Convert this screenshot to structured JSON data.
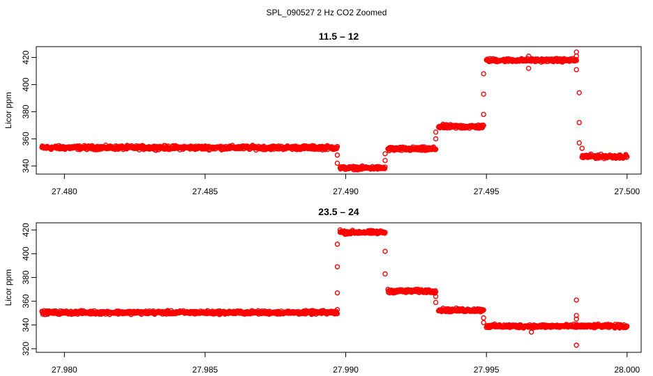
{
  "figure": {
    "suptitle": "SPL_090527  2 Hz CO2 Zoomed",
    "point_color": "#ff0000"
  },
  "chart_data": [
    {
      "type": "scatter",
      "title": "11.5 – 12",
      "ylabel": "Licor ppm",
      "xlabel": "",
      "xlim": [
        27.479,
        27.5005
      ],
      "ylim": [
        334,
        428
      ],
      "xticks": [
        27.48,
        27.485,
        27.49,
        27.495,
        27.5
      ],
      "xtick_labels": [
        "27.480",
        "27.485",
        "27.490",
        "27.495",
        "27.500"
      ],
      "yticks": [
        340,
        360,
        380,
        400,
        420
      ],
      "ytick_labels": [
        "340",
        "360",
        "380",
        "400",
        "420"
      ],
      "segments": [
        {
          "x_start": 27.4792,
          "x_end": 27.4897,
          "level": 353.5,
          "noise": 1.2
        },
        {
          "x_start": 27.4898,
          "x_end": 27.4914,
          "level": 338.5,
          "noise": 1.0
        },
        {
          "x_start": 27.4915,
          "x_end": 27.4932,
          "level": 352.5,
          "noise": 1.2
        },
        {
          "x_start": 27.4933,
          "x_end": 27.4949,
          "level": 369.0,
          "noise": 1.2
        },
        {
          "x_start": 27.495,
          "x_end": 27.4982,
          "level": 418.0,
          "noise": 1.0
        },
        {
          "x_start": 27.4984,
          "x_end": 27.5,
          "level": 347.0,
          "noise": 1.2
        }
      ],
      "outliers": [
        {
          "x": 27.4897,
          "y": 348
        },
        {
          "x": 27.4897,
          "y": 342
        },
        {
          "x": 27.4914,
          "y": 344
        },
        {
          "x": 27.4914,
          "y": 349
        },
        {
          "x": 27.4932,
          "y": 360
        },
        {
          "x": 27.4932,
          "y": 365
        },
        {
          "x": 27.4949,
          "y": 378
        },
        {
          "x": 27.4949,
          "y": 393
        },
        {
          "x": 27.4949,
          "y": 408
        },
        {
          "x": 27.4965,
          "y": 412
        },
        {
          "x": 27.4965,
          "y": 421
        },
        {
          "x": 27.4982,
          "y": 424
        },
        {
          "x": 27.4982,
          "y": 421
        },
        {
          "x": 27.4982,
          "y": 411
        },
        {
          "x": 27.4983,
          "y": 394
        },
        {
          "x": 27.4983,
          "y": 372
        },
        {
          "x": 27.4983,
          "y": 357
        },
        {
          "x": 27.4984,
          "y": 353
        }
      ]
    },
    {
      "type": "scatter",
      "title": "23.5 – 24",
      "ylabel": "Licor ppm",
      "xlabel": "",
      "xlim": [
        27.979,
        28.0005
      ],
      "ylim": [
        317,
        426
      ],
      "xticks": [
        27.98,
        27.985,
        27.99,
        27.995,
        28.0
      ],
      "xtick_labels": [
        "27.980",
        "27.985",
        "27.990",
        "27.995",
        "28.000"
      ],
      "yticks": [
        320,
        340,
        360,
        380,
        400,
        420
      ],
      "ytick_labels": [
        "320",
        "340",
        "360",
        "380",
        "400",
        "420"
      ],
      "segments": [
        {
          "x_start": 27.9792,
          "x_end": 27.9897,
          "level": 350.5,
          "noise": 1.2
        },
        {
          "x_start": 27.9898,
          "x_end": 27.9914,
          "level": 418.0,
          "noise": 1.2
        },
        {
          "x_start": 27.9915,
          "x_end": 27.9932,
          "level": 368.5,
          "noise": 1.2
        },
        {
          "x_start": 27.9933,
          "x_end": 27.9949,
          "level": 352.5,
          "noise": 1.2
        },
        {
          "x_start": 27.995,
          "x_end": 28.0,
          "level": 339.0,
          "noise": 1.2
        }
      ],
      "outliers": [
        {
          "x": 27.9897,
          "y": 353
        },
        {
          "x": 27.9897,
          "y": 367
        },
        {
          "x": 27.9897,
          "y": 389
        },
        {
          "x": 27.9897,
          "y": 408
        },
        {
          "x": 27.9898,
          "y": 420
        },
        {
          "x": 27.9914,
          "y": 402
        },
        {
          "x": 27.9914,
          "y": 383
        },
        {
          "x": 27.9932,
          "y": 359
        },
        {
          "x": 27.9932,
          "y": 364
        },
        {
          "x": 27.9949,
          "y": 346
        },
        {
          "x": 27.9949,
          "y": 342
        },
        {
          "x": 27.9966,
          "y": 334
        },
        {
          "x": 27.9982,
          "y": 361
        },
        {
          "x": 27.9982,
          "y": 348
        },
        {
          "x": 27.9982,
          "y": 345
        },
        {
          "x": 27.9982,
          "y": 323
        }
      ]
    }
  ]
}
